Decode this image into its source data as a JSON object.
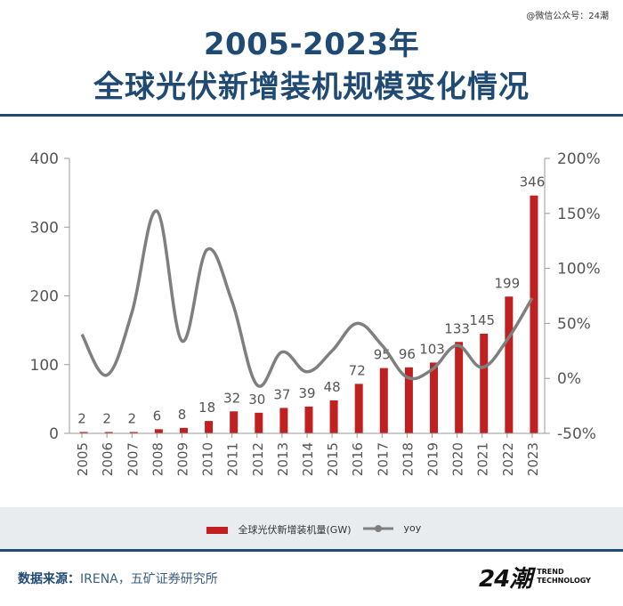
{
  "watermark": "@微信公众号：24潮",
  "header": {
    "title_line1": "2005-2023年",
    "title_line2": "全球光伏新增装机规模变化情况"
  },
  "footer": {
    "source_label": "数据来源：",
    "source_value": "IRENA，五矿证券研究所",
    "logo_mark": "24潮",
    "logo_line1": "TREND",
    "logo_line2": "TECHNOLOGY"
  },
  "colors": {
    "bar": "#c0201f",
    "line": "#7f7f7f",
    "title": "#1f4a74",
    "axis_text": "#555555"
  },
  "chart_data": {
    "type": "bar",
    "categories": [
      "2005",
      "2006",
      "2007",
      "2008",
      "2009",
      "2010",
      "2011",
      "2012",
      "2013",
      "2014",
      "2015",
      "2016",
      "2017",
      "2018",
      "2019",
      "2020",
      "2021",
      "2022",
      "2023"
    ],
    "series": [
      {
        "name": "全球光伏新增装机量(GW)",
        "type": "bar",
        "axis": "left",
        "values": [
          2,
          2,
          2,
          6,
          8,
          18,
          32,
          30,
          37,
          39,
          48,
          72,
          95,
          96,
          103,
          133,
          145,
          199,
          346
        ],
        "labels": [
          "2",
          "2",
          "2",
          "6",
          "8",
          "18",
          "32",
          "30",
          "37",
          "39",
          "48",
          "72",
          "95",
          "96",
          "103",
          "133",
          "145",
          "199",
          "346"
        ]
      },
      {
        "name": "yoy",
        "type": "line",
        "axis": "right",
        "values": [
          40,
          3,
          60,
          152,
          34,
          117,
          70,
          -6,
          24,
          6,
          25,
          50,
          30,
          1,
          8,
          30,
          10,
          35,
          73
        ]
      }
    ],
    "y_left": {
      "min": 0,
      "max": 400,
      "ticks": [
        "0",
        "100",
        "200",
        "300",
        "400"
      ]
    },
    "y_right": {
      "min": -50,
      "max": 200,
      "ticks": [
        "-50%",
        "0%",
        "50%",
        "100%",
        "150%",
        "200%"
      ]
    },
    "legend": [
      {
        "label": "全球光伏新增装机量(GW)",
        "kind": "bar"
      },
      {
        "label": "yoy",
        "kind": "line"
      }
    ]
  }
}
